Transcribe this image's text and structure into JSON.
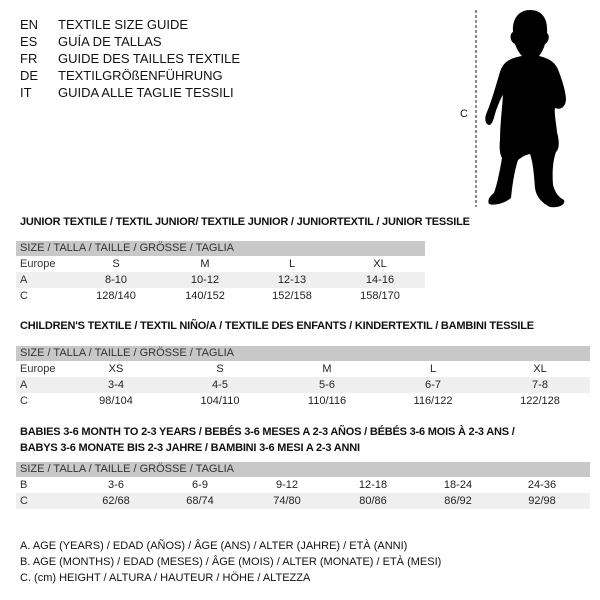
{
  "languages": [
    {
      "code": "EN",
      "text": "TEXTILE SIZE GUIDE"
    },
    {
      "code": "ES",
      "text": "GUÍA DE TALLAS"
    },
    {
      "code": "FR",
      "text": "GUIDE DES TAILLES TEXTILE"
    },
    {
      "code": "DE",
      "text": "TEXTILGRÖßENFÜHRUNG"
    },
    {
      "code": "IT",
      "text": "GUIDA ALLE TAGLIE TESSILI"
    }
  ],
  "figure": {
    "measure_label": "C"
  },
  "junior": {
    "title": "JUNIOR TEXTILE / TEXTIL JUNIOR/ TEXTILE JUNIOR / JUNIORTEXTIL / JUNIOR TESSILE",
    "header": "SIZE / TALLA / TAILLE / GRÖSSE / TAGLIA",
    "rows": [
      {
        "label": "Europe",
        "values": [
          "S",
          "M",
          "L",
          "XL"
        ]
      },
      {
        "label": "A",
        "values": [
          "8-10",
          "10-12",
          "12-13",
          "14-16"
        ]
      },
      {
        "label": "C",
        "values": [
          "128/140",
          "140/152",
          "152/158",
          "158/170"
        ]
      }
    ]
  },
  "children": {
    "title": "CHILDREN'S TEXTILE / TEXTIL NIÑO/A / TEXTILE DES ENFANTS / KINDERTEXTIL / BAMBINI TESSILE",
    "header": "SIZE / TALLA / TAILLE / GRÖSSE / TAGLIA",
    "rows": [
      {
        "label": "Europe",
        "values": [
          "XS",
          "S",
          "M",
          "L",
          "XL"
        ]
      },
      {
        "label": "A",
        "values": [
          "3-4",
          "4-5",
          "5-6",
          "6-7",
          "7-8"
        ]
      },
      {
        "label": "C",
        "values": [
          "98/104",
          "104/110",
          "110/116",
          "116/122",
          "122/128"
        ]
      }
    ]
  },
  "babies": {
    "title_line1": "BABIES 3-6 MONTH TO 2-3 YEARS / BEBÉS 3-6 MESES A 2-3 AÑOS / BÉBÉS 3-6 MOIS À 2-3 ANS /",
    "title_line2": "BABYS 3-6 MONATE BIS 2-3 JAHRE / BAMBINI 3-6 MESI A 2-3 ANNI",
    "header": "SIZE / TALLA / TAILLE / GRÖSSE / TAGLIA",
    "rows": [
      {
        "label": "B",
        "values": [
          "3-6",
          "6-9",
          "9-12",
          "12-18",
          "18-24",
          "24-36"
        ]
      },
      {
        "label": "C",
        "values": [
          "62/68",
          "68/74",
          "74/80",
          "80/86",
          "86/92",
          "92/98"
        ]
      }
    ]
  },
  "legend": [
    "A. AGE (YEARS) / EDAD (AÑOS) / ÂGE (ANS) / ALTER (JAHRE) / ETÀ (ANNI)",
    "B. AGE (MONTHS) / EDAD (MESES) / ÂGE (MOIS) / ALTER (MONATE) / ETÀ (MESI)",
    "C. (cm) HEIGHT / ALTURA / HAUTEUR / HÖHE / ALTEZZA"
  ]
}
